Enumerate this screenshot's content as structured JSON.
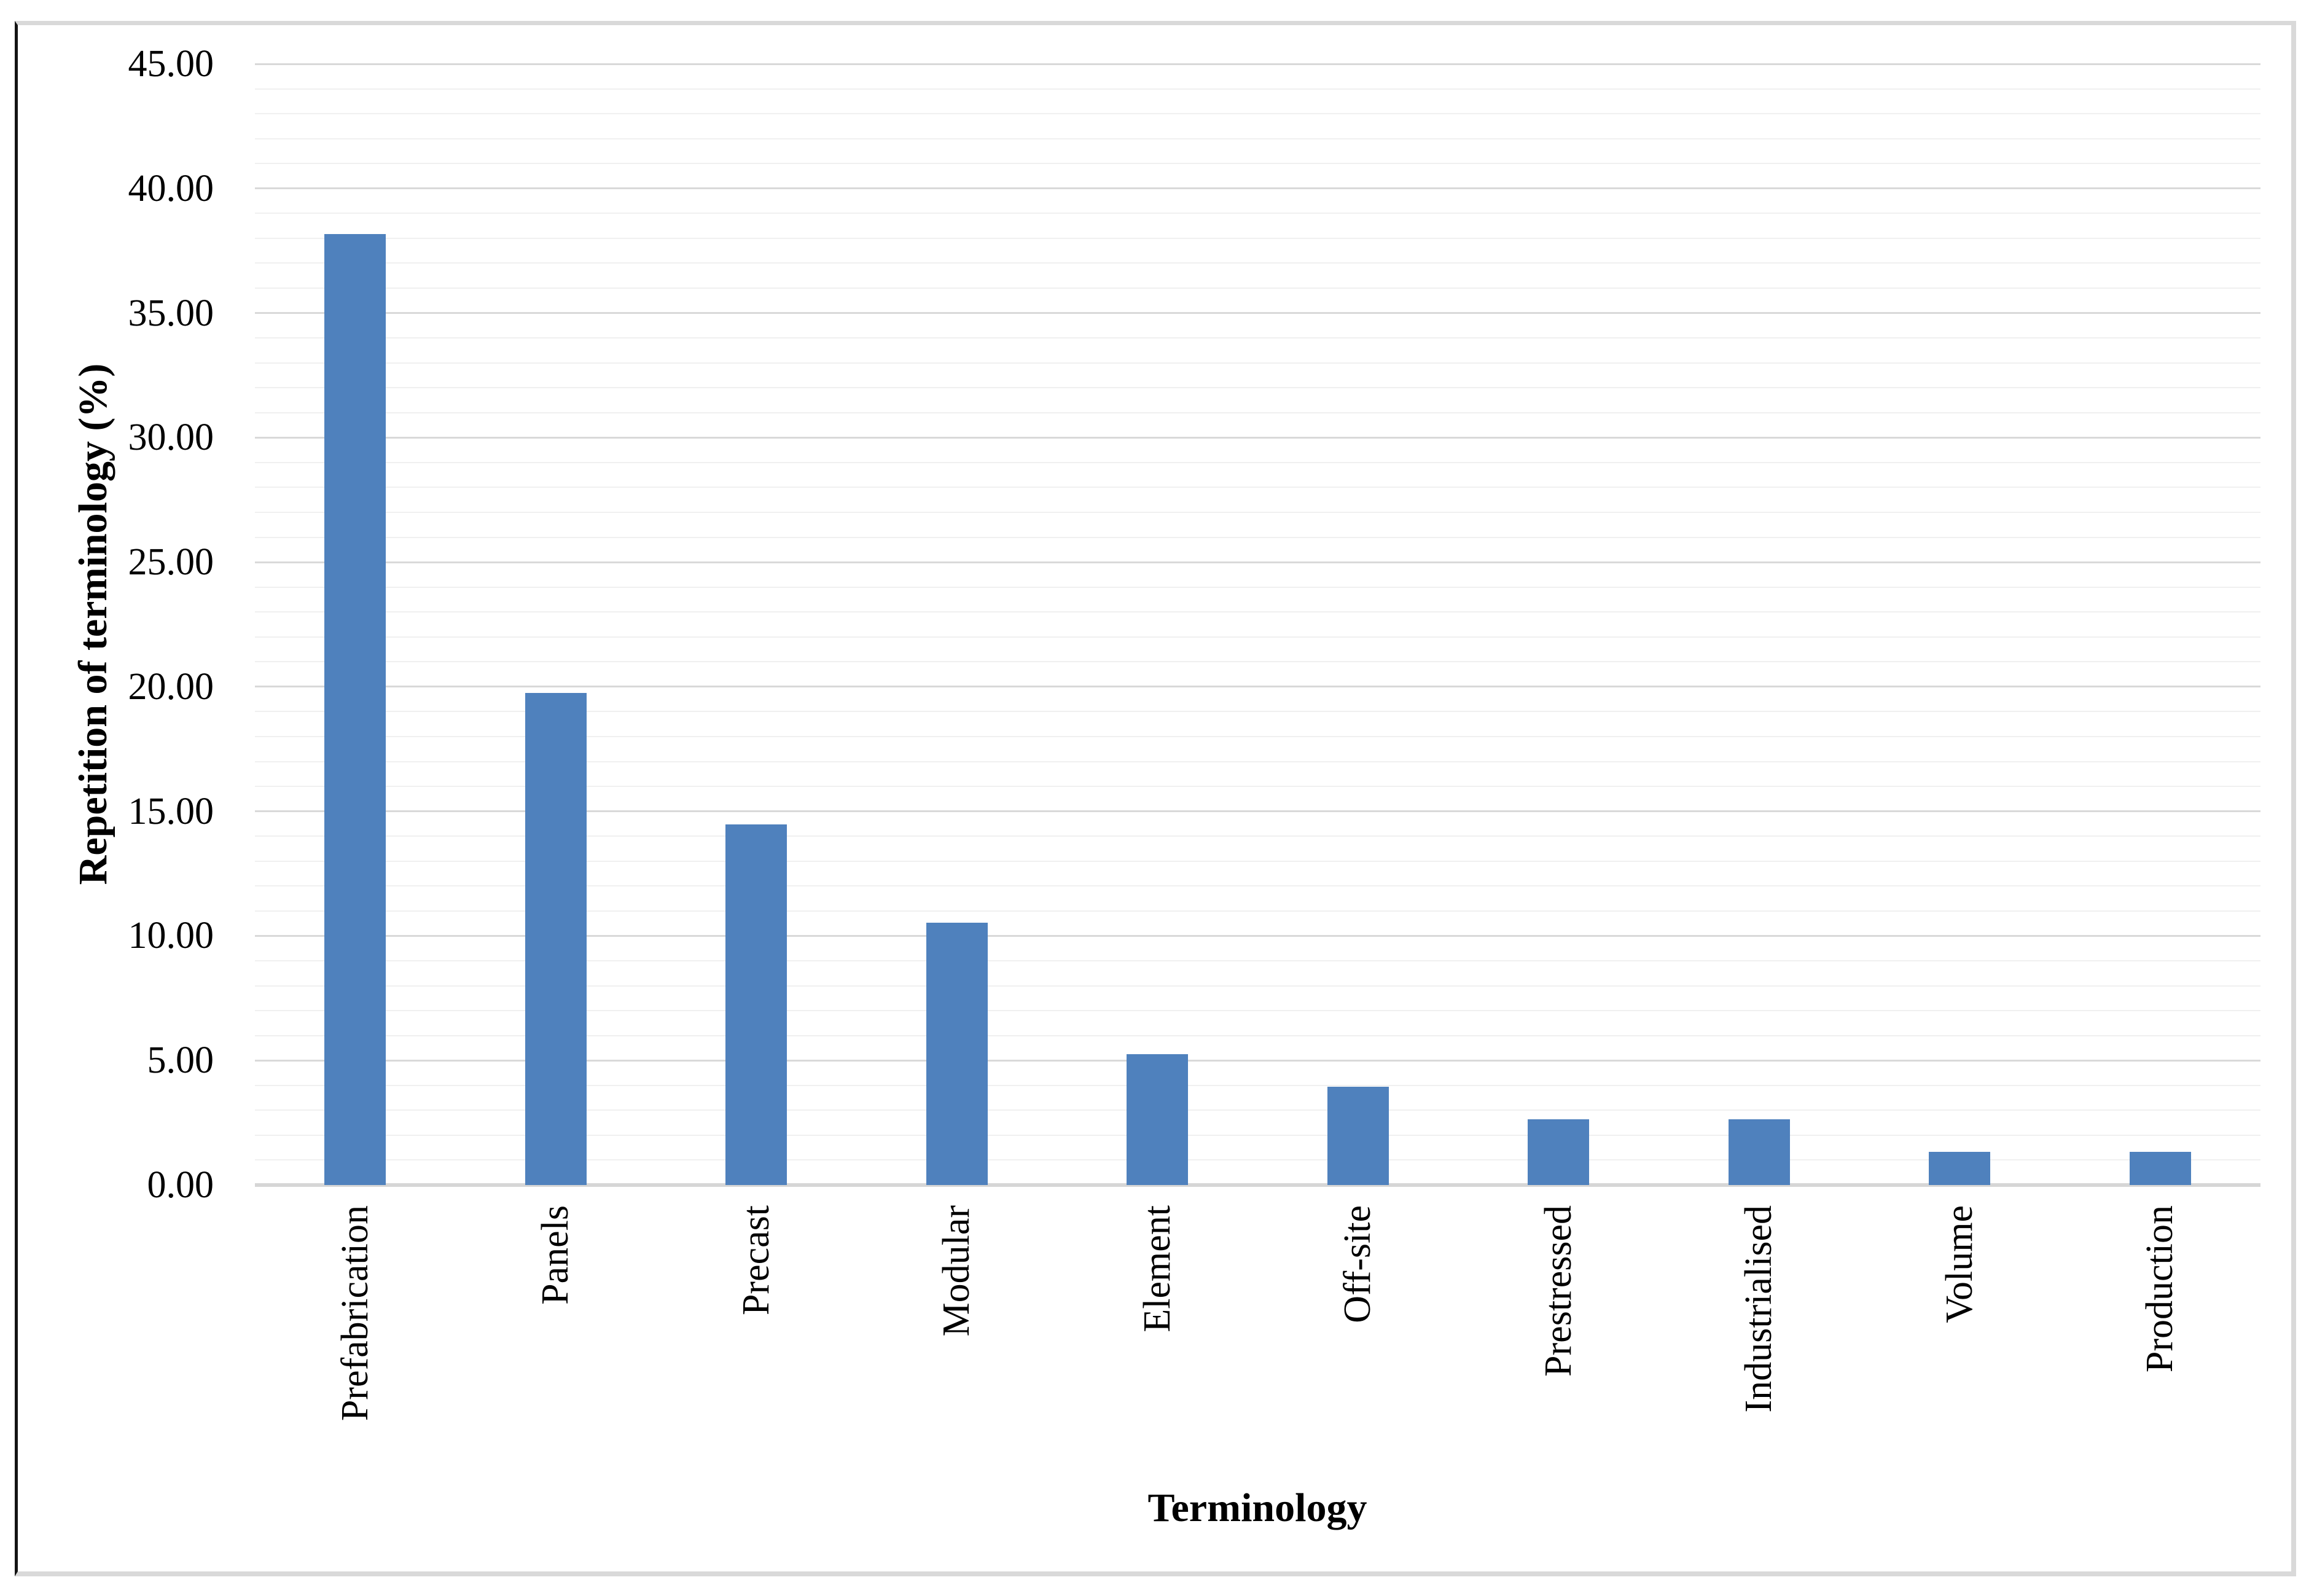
{
  "chart_data": {
    "type": "bar",
    "title": "",
    "xlabel": "Terminology",
    "ylabel": "Repetition of terminology (%)",
    "categories": [
      "Prefabrication",
      "Panels",
      "Precast",
      "Modular",
      "Element",
      "Off-site",
      "Prestressed",
      "Industrialised",
      "Volume",
      "Production"
    ],
    "values": [
      38.16,
      19.74,
      14.47,
      10.53,
      5.26,
      3.95,
      2.63,
      2.63,
      1.32,
      1.32
    ],
    "ylim": [
      0,
      45
    ],
    "ytick_step": 5,
    "minor_gridline_step": 1,
    "ytick_labels": [
      "0.00",
      "5.00",
      "10.00",
      "15.00",
      "20.00",
      "25.00",
      "30.00",
      "35.00",
      "40.00",
      "45.00"
    ],
    "grid": "horizontal major and minor gridlines",
    "legend": "none",
    "colors": {
      "bar_fill": "#4f81bd",
      "major_gridline": "#d9d9d9",
      "minor_gridline": "#f0f0f0",
      "axis_line": "#d6d6d6",
      "figure_border": "#d9d9d9",
      "figure_border_left": "#141414",
      "text": "#000000",
      "background": "#ffffff"
    }
  }
}
